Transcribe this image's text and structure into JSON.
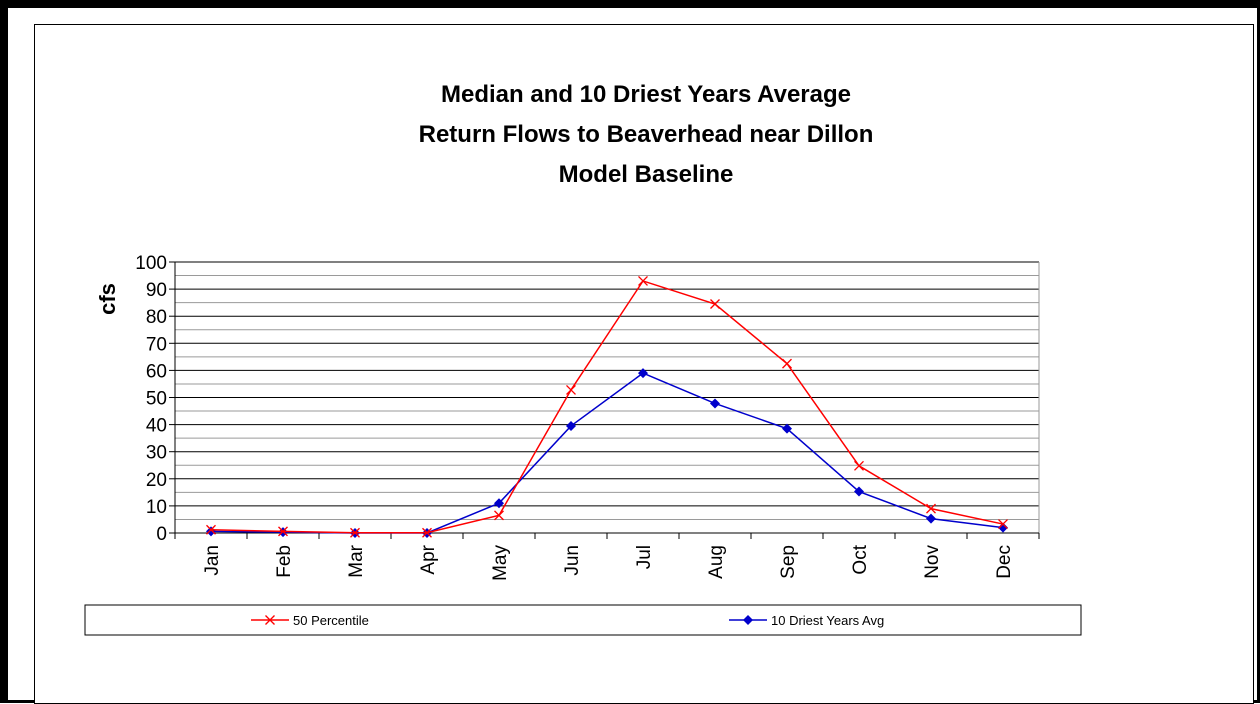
{
  "chart_data": {
    "type": "line",
    "title_lines": [
      "Median and 10 Driest Years Average",
      "Return Flows to Beaverhead near Dillon",
      "Model Baseline"
    ],
    "xlabel": "",
    "ylabel": "cfs",
    "categories": [
      "Jan",
      "Feb",
      "Mar",
      "Apr",
      "May",
      "Jun",
      "Jul",
      "Aug",
      "Sep",
      "Oct",
      "Nov",
      "Dec"
    ],
    "ylim": [
      0,
      100
    ],
    "y_ticks": [
      "0",
      "10",
      "20",
      "30",
      "40",
      "50",
      "60",
      "70",
      "80",
      "90",
      "100"
    ],
    "grid": true,
    "legend_position": "bottom",
    "series": [
      {
        "name": "50 Percentile",
        "color": "#ff0000",
        "marker": "x",
        "values": [
          1.2,
          0.6,
          0.1,
          0.1,
          6.5,
          52.8,
          93.0,
          84.5,
          62.5,
          24.8,
          9.0,
          3.3
        ]
      },
      {
        "name": "10 Driest Years Avg",
        "color": "#0000cc",
        "marker": "diamond",
        "values": [
          0.6,
          0.3,
          0.0,
          0.0,
          11.0,
          39.5,
          59.0,
          47.8,
          38.5,
          15.3,
          5.3,
          2.0
        ]
      }
    ]
  }
}
